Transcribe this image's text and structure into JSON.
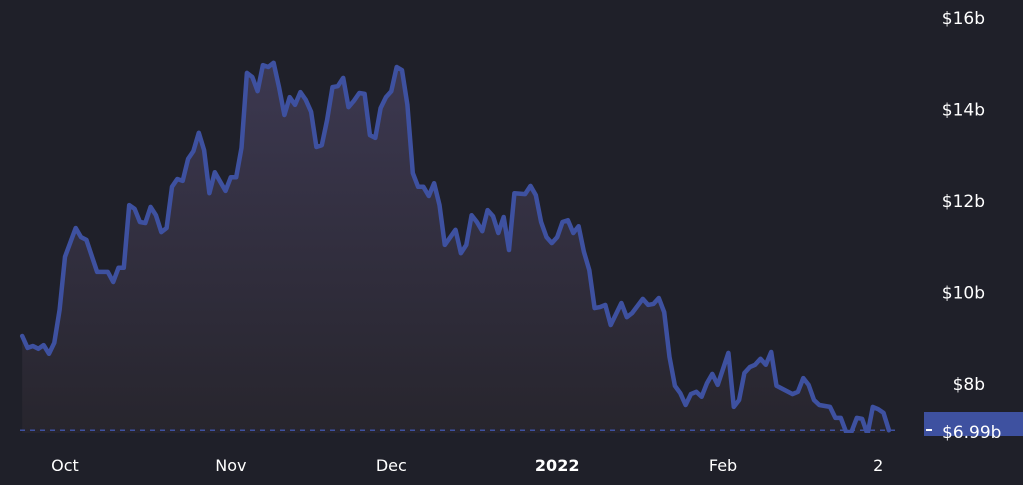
{
  "chart_data": {
    "type": "area",
    "title": "",
    "xlabel": "",
    "ylabel": "",
    "ylim": [
      6.93,
      16.4
    ],
    "y_unit": "billion USD",
    "y_axis_position": "right",
    "grid": false,
    "legend": "none",
    "colors": {
      "background": "#1f2029",
      "line": "#3e51a0",
      "fill_top": "#3c3850",
      "fill_bottom": "#27252d",
      "badge": "#3e51a0"
    },
    "y_ticks": [
      {
        "value": 16,
        "label": "$16b"
      },
      {
        "value": 14,
        "label": "$14b"
      },
      {
        "value": 12,
        "label": "$12b"
      },
      {
        "value": 10,
        "label": "$10b"
      },
      {
        "value": 8,
        "label": "$8b"
      }
    ],
    "x_ticks": [
      {
        "date": "2021-10-01",
        "label": "Oct",
        "bold": false
      },
      {
        "date": "2021-11-01",
        "label": "Nov",
        "bold": false
      },
      {
        "date": "2021-12-01",
        "label": "Dec",
        "bold": false
      },
      {
        "date": "2022-01-01",
        "label": "2022",
        "bold": true
      },
      {
        "date": "2022-02-01",
        "label": "Feb",
        "bold": false
      },
      {
        "date": "2022-03-02",
        "label": "2",
        "bold": false
      }
    ],
    "current_value": {
      "value": 6.99,
      "label": "$6.99b"
    },
    "series": [
      {
        "points": [
          [
            "2021-09-23",
            9.05
          ],
          [
            "2021-09-24",
            8.79
          ],
          [
            "2021-09-25",
            8.83
          ],
          [
            "2021-09-26",
            8.77
          ],
          [
            "2021-09-27",
            8.85
          ],
          [
            "2021-09-28",
            8.66
          ],
          [
            "2021-09-29",
            8.9
          ],
          [
            "2021-09-30",
            9.62
          ],
          [
            "2021-10-01",
            10.78
          ],
          [
            "2021-10-03",
            11.41
          ],
          [
            "2021-10-04",
            11.21
          ],
          [
            "2021-10-05",
            11.15
          ],
          [
            "2021-10-07",
            10.45
          ],
          [
            "2021-10-09",
            10.45
          ],
          [
            "2021-10-10",
            10.23
          ],
          [
            "2021-10-11",
            10.54
          ],
          [
            "2021-10-12",
            10.54
          ],
          [
            "2021-10-13",
            11.91
          ],
          [
            "2021-10-14",
            11.83
          ],
          [
            "2021-10-15",
            11.54
          ],
          [
            "2021-10-16",
            11.52
          ],
          [
            "2021-10-17",
            11.87
          ],
          [
            "2021-10-18",
            11.69
          ],
          [
            "2021-10-19",
            11.32
          ],
          [
            "2021-10-20",
            11.41
          ],
          [
            "2021-10-21",
            12.31
          ],
          [
            "2021-10-22",
            12.48
          ],
          [
            "2021-10-23",
            12.44
          ],
          [
            "2021-10-24",
            12.92
          ],
          [
            "2021-10-25",
            13.09
          ],
          [
            "2021-10-26",
            13.49
          ],
          [
            "2021-10-27",
            13.11
          ],
          [
            "2021-10-28",
            12.17
          ],
          [
            "2021-10-29",
            12.63
          ],
          [
            "2021-10-31",
            12.22
          ],
          [
            "2021-11-01",
            12.52
          ],
          [
            "2021-11-02",
            12.52
          ],
          [
            "2021-11-03",
            13.16
          ],
          [
            "2021-11-04",
            14.8
          ],
          [
            "2021-11-05",
            14.71
          ],
          [
            "2021-11-06",
            14.4
          ],
          [
            "2021-11-07",
            14.97
          ],
          [
            "2021-11-08",
            14.93
          ],
          [
            "2021-11-09",
            15.02
          ],
          [
            "2021-11-10",
            14.49
          ],
          [
            "2021-11-11",
            13.88
          ],
          [
            "2021-11-12",
            14.27
          ],
          [
            "2021-11-13",
            14.1
          ],
          [
            "2021-11-14",
            14.38
          ],
          [
            "2021-11-15",
            14.21
          ],
          [
            "2021-11-16",
            13.95
          ],
          [
            "2021-11-17",
            13.18
          ],
          [
            "2021-11-18",
            13.22
          ],
          [
            "2021-11-19",
            13.77
          ],
          [
            "2021-11-20",
            14.49
          ],
          [
            "2021-11-21",
            14.51
          ],
          [
            "2021-11-22",
            14.69
          ],
          [
            "2021-11-23",
            14.05
          ],
          [
            "2021-11-24",
            14.19
          ],
          [
            "2021-11-25",
            14.36
          ],
          [
            "2021-11-26",
            14.34
          ],
          [
            "2021-11-27",
            13.44
          ],
          [
            "2021-11-28",
            13.38
          ],
          [
            "2021-11-29",
            14.03
          ],
          [
            "2021-11-30",
            14.27
          ],
          [
            "2021-12-01",
            14.4
          ],
          [
            "2021-12-02",
            14.93
          ],
          [
            "2021-12-03",
            14.86
          ],
          [
            "2021-12-04",
            14.1
          ],
          [
            "2021-12-05",
            12.61
          ],
          [
            "2021-12-06",
            12.31
          ],
          [
            "2021-12-07",
            12.31
          ],
          [
            "2021-12-08",
            12.11
          ],
          [
            "2021-12-09",
            12.39
          ],
          [
            "2021-12-10",
            11.91
          ],
          [
            "2021-12-11",
            11.04
          ],
          [
            "2021-12-13",
            11.37
          ],
          [
            "2021-12-14",
            10.86
          ],
          [
            "2021-12-15",
            11.04
          ],
          [
            "2021-12-16",
            11.69
          ],
          [
            "2021-12-17",
            11.54
          ],
          [
            "2021-12-18",
            11.34
          ],
          [
            "2021-12-19",
            11.8
          ],
          [
            "2021-12-20",
            11.67
          ],
          [
            "2021-12-21",
            11.3
          ],
          [
            "2021-12-22",
            11.65
          ],
          [
            "2021-12-23",
            10.93
          ],
          [
            "2021-12-24",
            12.17
          ],
          [
            "2021-12-26",
            12.15
          ],
          [
            "2021-12-27",
            12.33
          ],
          [
            "2021-12-28",
            12.13
          ],
          [
            "2021-12-29",
            11.54
          ],
          [
            "2021-12-30",
            11.21
          ],
          [
            "2021-12-31",
            11.08
          ],
          [
            "2022-01-01",
            11.21
          ],
          [
            "2022-01-02",
            11.54
          ],
          [
            "2022-01-03",
            11.58
          ],
          [
            "2022-01-04",
            11.3
          ],
          [
            "2022-01-05",
            11.45
          ],
          [
            "2022-01-06",
            10.89
          ],
          [
            "2022-01-07",
            10.49
          ],
          [
            "2022-01-08",
            9.66
          ],
          [
            "2022-01-09",
            9.68
          ],
          [
            "2022-01-10",
            9.73
          ],
          [
            "2022-01-11",
            9.29
          ],
          [
            "2022-01-13",
            9.77
          ],
          [
            "2022-01-14",
            9.46
          ],
          [
            "2022-01-15",
            9.55
          ],
          [
            "2022-01-17",
            9.86
          ],
          [
            "2022-01-18",
            9.73
          ],
          [
            "2022-01-19",
            9.75
          ],
          [
            "2022-01-20",
            9.88
          ],
          [
            "2022-01-21",
            9.57
          ],
          [
            "2022-01-22",
            8.59
          ],
          [
            "2022-01-23",
            7.96
          ],
          [
            "2022-01-24",
            7.8
          ],
          [
            "2022-01-25",
            7.54
          ],
          [
            "2022-01-26",
            7.78
          ],
          [
            "2022-01-27",
            7.83
          ],
          [
            "2022-01-28",
            7.72
          ],
          [
            "2022-01-29",
            8.02
          ],
          [
            "2022-01-30",
            8.22
          ],
          [
            "2022-01-31",
            7.98
          ],
          [
            "2022-02-02",
            8.68
          ],
          [
            "2022-02-03",
            7.5
          ],
          [
            "2022-02-04",
            7.65
          ],
          [
            "2022-02-05",
            8.24
          ],
          [
            "2022-02-06",
            8.37
          ],
          [
            "2022-02-07",
            8.42
          ],
          [
            "2022-02-08",
            8.55
          ],
          [
            "2022-02-09",
            8.42
          ],
          [
            "2022-02-10",
            8.7
          ],
          [
            "2022-02-11",
            7.96
          ],
          [
            "2022-02-14",
            7.78
          ],
          [
            "2022-02-15",
            7.83
          ],
          [
            "2022-02-16",
            8.13
          ],
          [
            "2022-02-17",
            7.98
          ],
          [
            "2022-02-18",
            7.65
          ],
          [
            "2022-02-19",
            7.54
          ],
          [
            "2022-02-21",
            7.5
          ],
          [
            "2022-02-22",
            7.26
          ],
          [
            "2022-02-23",
            7.26
          ],
          [
            "2022-02-24",
            6.95
          ],
          [
            "2022-02-25",
            6.95
          ],
          [
            "2022-02-26",
            7.26
          ],
          [
            "2022-02-27",
            7.24
          ],
          [
            "2022-02-28",
            6.9
          ],
          [
            "2022-03-01",
            7.5
          ],
          [
            "2022-03-02",
            7.45
          ],
          [
            "2022-03-03",
            7.37
          ],
          [
            "2022-03-04",
            6.99
          ]
        ]
      }
    ]
  }
}
